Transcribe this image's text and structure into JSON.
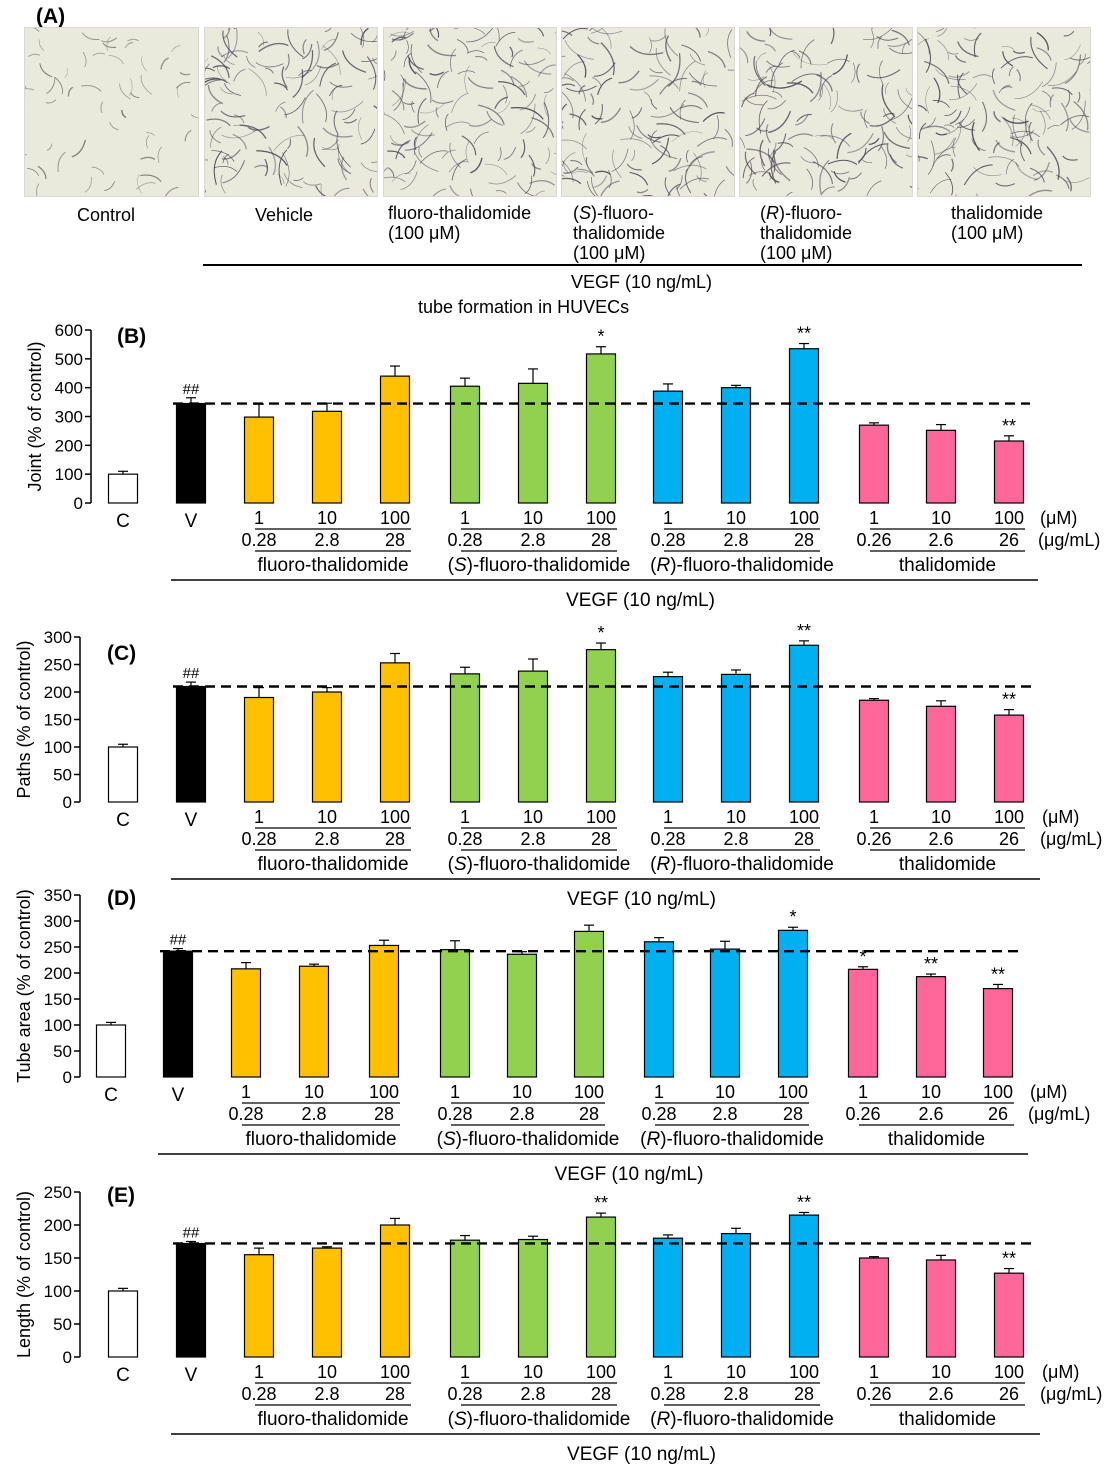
{
  "panel_a": {
    "label": "(A)",
    "images": [
      {
        "caption_lines": [
          "Control"
        ]
      },
      {
        "caption_lines": [
          "Vehicle"
        ]
      },
      {
        "caption_lines": [
          "fluoro-thalidomide",
          "(100 μM)"
        ]
      },
      {
        "caption_lines": [
          "(S)-fluoro-",
          "thalidomide",
          "(100 μM)"
        ]
      },
      {
        "caption_lines": [
          "(R)-fluoro-",
          "thalidomide",
          "(100 μM)"
        ]
      },
      {
        "caption_lines": [
          "thalidomide",
          "(100 μM)"
        ]
      }
    ],
    "vegf_label": "VEGF (10 ng/mL)"
  },
  "figure_title": "tube formation in HUVECs",
  "chart_data": [
    {
      "type": "bar",
      "panel": "(B)",
      "ylabel": "Joint  (% of control)",
      "ylim": [
        0,
        600
      ],
      "yticks": [
        0,
        100,
        200,
        300,
        400,
        500,
        600
      ],
      "categories": [
        "C",
        "V",
        "1",
        "10",
        "100",
        "1",
        "10",
        "100",
        "1",
        "10",
        "100",
        "1",
        "10",
        "100"
      ],
      "values": [
        100,
        345,
        298,
        318,
        440,
        405,
        415,
        517,
        388,
        400,
        535,
        270,
        252,
        215
      ],
      "errors": [
        10,
        20,
        45,
        28,
        35,
        28,
        50,
        25,
        25,
        8,
        18,
        8,
        20,
        18
      ],
      "reference_line": 345,
      "significance": [
        "",
        "##",
        "",
        "",
        "",
        "",
        "",
        "*",
        "",
        "",
        "**",
        "",
        "",
        "**"
      ]
    },
    {
      "type": "bar",
      "panel": "(C)",
      "ylabel": "Paths (% of control)",
      "ylim": [
        0,
        300
      ],
      "yticks": [
        0,
        50,
        100,
        150,
        200,
        250,
        300
      ],
      "categories": [
        "C",
        "V",
        "1",
        "10",
        "100",
        "1",
        "10",
        "100",
        "1",
        "10",
        "100",
        "1",
        "10",
        "100"
      ],
      "values": [
        100,
        210,
        190,
        200,
        253,
        233,
        238,
        277,
        228,
        232,
        285,
        185,
        174,
        158
      ],
      "errors": [
        5,
        8,
        18,
        8,
        17,
        12,
        22,
        12,
        8,
        8,
        8,
        3,
        10,
        10
      ],
      "reference_line": 210,
      "significance": [
        "",
        "##",
        "",
        "",
        "",
        "",
        "",
        "*",
        "",
        "",
        "**",
        "",
        "",
        "**"
      ]
    },
    {
      "type": "bar",
      "panel": "(D)",
      "ylabel": "Tube area (% of control)",
      "ylim": [
        0,
        350
      ],
      "yticks": [
        0,
        50,
        100,
        150,
        200,
        250,
        300,
        350
      ],
      "categories": [
        "C",
        "V",
        "1",
        "10",
        "100",
        "1",
        "10",
        "100",
        "1",
        "10",
        "100",
        "1",
        "10",
        "100"
      ],
      "values": [
        100,
        242,
        208,
        213,
        253,
        245,
        236,
        280,
        260,
        246,
        282,
        207,
        193,
        170
      ],
      "errors": [
        5,
        5,
        12,
        4,
        10,
        17,
        5,
        12,
        8,
        15,
        6,
        5,
        5,
        8
      ],
      "reference_line": 242,
      "significance": [
        "",
        "##",
        "",
        "",
        "",
        "",
        "",
        "",
        "",
        "",
        "*",
        "*",
        "**",
        "**"
      ]
    },
    {
      "type": "bar",
      "panel": "(E)",
      "ylabel": "Length (% of control)",
      "ylim": [
        0,
        250
      ],
      "yticks": [
        0,
        50,
        100,
        150,
        200,
        250
      ],
      "categories": [
        "C",
        "V",
        "1",
        "10",
        "100",
        "1",
        "10",
        "100",
        "1",
        "10",
        "100",
        "1",
        "10",
        "100"
      ],
      "values": [
        100,
        172,
        155,
        165,
        200,
        177,
        178,
        212,
        180,
        187,
        215,
        150,
        147,
        127
      ],
      "errors": [
        4,
        3,
        10,
        2,
        10,
        7,
        5,
        6,
        5,
        8,
        4,
        2,
        7,
        7
      ],
      "reference_line": 172,
      "significance": [
        "",
        "##",
        "",
        "",
        "",
        "",
        "",
        "**",
        "",
        "",
        "**",
        "",
        "",
        "**"
      ]
    }
  ],
  "groups": [
    {
      "name": "fluoro-thalidomide",
      "name_parts": [
        "",
        "fluoro-thalidomide"
      ],
      "color": "#FFC000",
      "uM": [
        "1",
        "10",
        "100"
      ],
      "ugml": [
        "0.28",
        "2.8",
        "28"
      ]
    },
    {
      "name": "(S)-fluoro-thalidomide",
      "name_parts": [
        "S",
        "-fluoro-thalidomide"
      ],
      "color": "#92D050",
      "uM": [
        "1",
        "10",
        "100"
      ],
      "ugml": [
        "0.28",
        "2.8",
        "28"
      ]
    },
    {
      "name": "(R)-fluoro-thalidomide",
      "name_parts": [
        "R",
        "-fluoro-thalidomide"
      ],
      "color": "#00B0F0",
      "uM": [
        "1",
        "10",
        "100"
      ],
      "ugml": [
        "0.28",
        "2.8",
        "28"
      ]
    },
    {
      "name": "thalidomide",
      "name_parts": [
        "",
        "thalidomide"
      ],
      "color": "#FF6699",
      "uM": [
        "1",
        "10",
        "100"
      ],
      "ugml": [
        "0.26",
        "2.6",
        "26"
      ]
    }
  ],
  "control_labels": {
    "control": "C",
    "vehicle": "V"
  },
  "control_colors": {
    "control": "#FFFFFF",
    "vehicle": "#000000"
  },
  "unit_labels": {
    "molar": "(μM)",
    "mass": "(μg/mL)"
  },
  "vegf_label": "VEGF (10 ng/mL)"
}
